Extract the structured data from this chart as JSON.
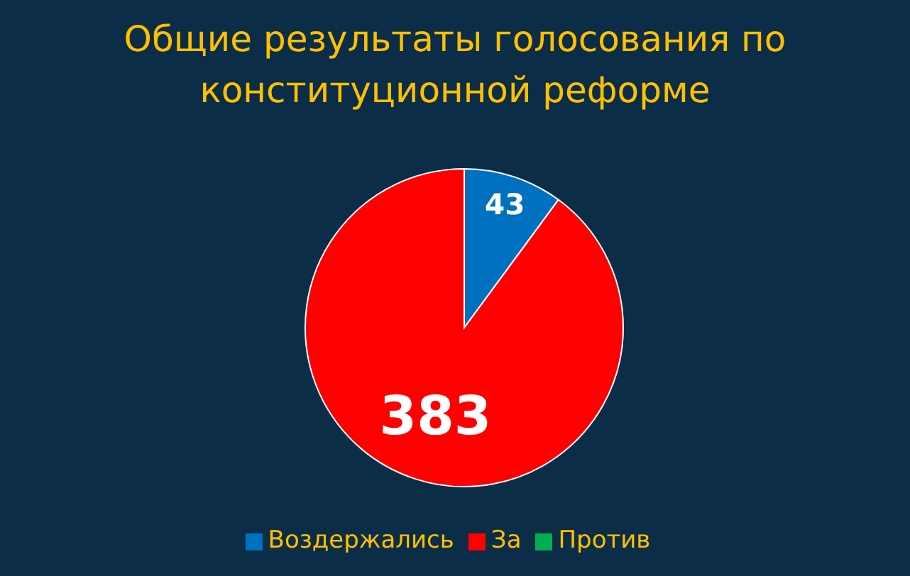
{
  "chart_data": {
    "type": "pie",
    "title": "Общие результаты голосования по конституционной реформе",
    "categories": [
      "Воздержались",
      "Против",
      "За"
    ],
    "values": [
      43,
      0,
      383
    ],
    "colors": [
      "#0070c0",
      "#00b050",
      "#ff0000"
    ],
    "value_labels": [
      "43",
      null,
      "383"
    ],
    "legend": "bottom"
  }
}
